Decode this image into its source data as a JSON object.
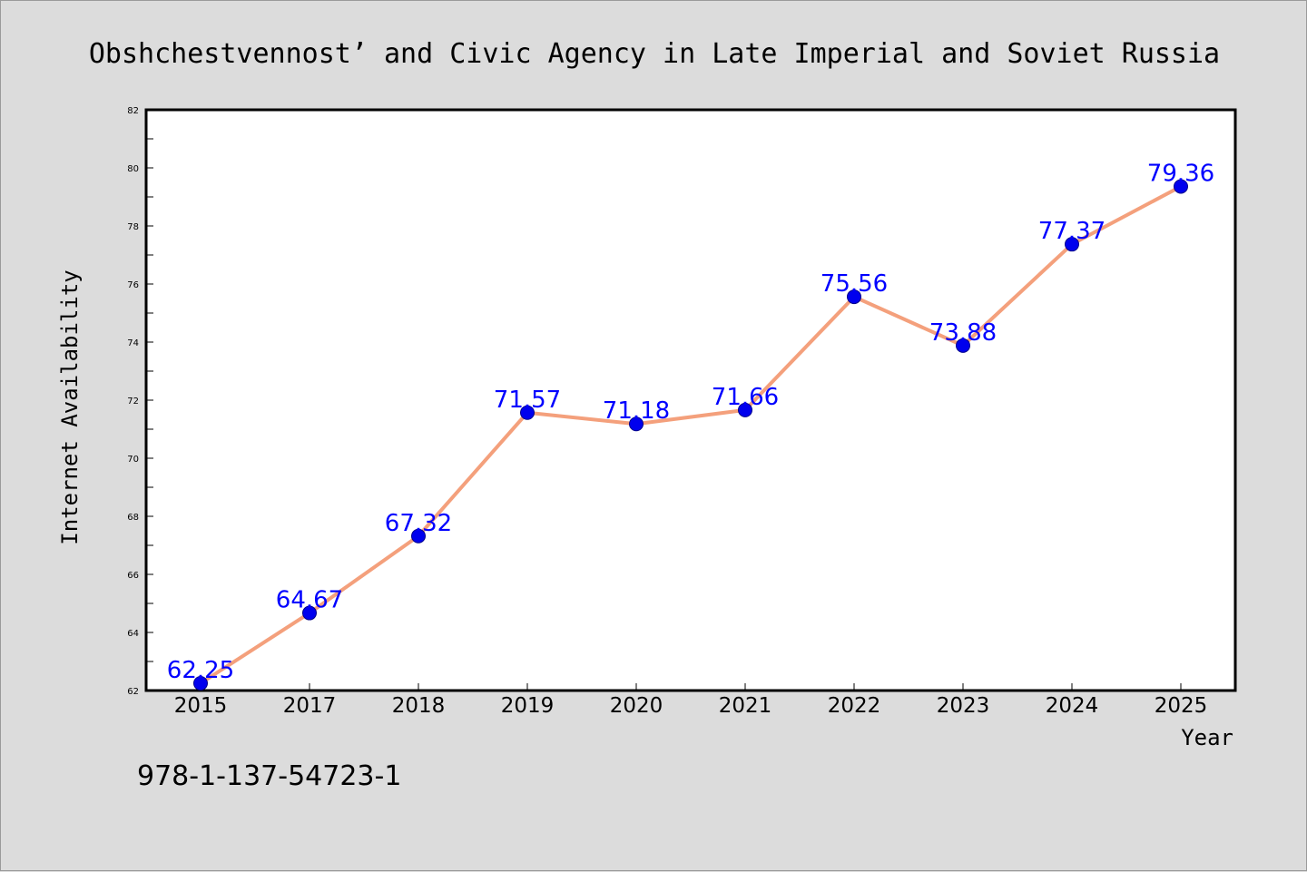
{
  "chart_data": {
    "type": "line",
    "title": "Obshchestvennost’  and Civic Agency in Late Imperial and Soviet Russia",
    "xlabel": "Year",
    "ylabel": "Internet Availability",
    "categories": [
      "2015",
      "2017",
      "2018",
      "2019",
      "2020",
      "2021",
      "2022",
      "2023",
      "2024",
      "2025"
    ],
    "series": [
      {
        "values": [
          62.25,
          64.67,
          67.32,
          71.57,
          71.18,
          71.66,
          75.56,
          73.88,
          77.37,
          79.36
        ],
        "labels": [
          "62.25",
          "64.67",
          "67.32",
          "71.57",
          "71.18",
          "71.66",
          "75.56",
          "73.88",
          "77.37",
          "79.36"
        ],
        "line_color": "#f4a07c",
        "marker_color": "#0000ee",
        "label_color": "#0000ff"
      }
    ],
    "ylim": [
      62,
      82
    ],
    "y_ticks": [
      "62",
      "64",
      "66",
      "68",
      "70",
      "72",
      "74",
      "76",
      "78",
      "80",
      "82"
    ],
    "grid": false,
    "legend": "none"
  },
  "footer": {
    "code": "978-1-137-54723-1"
  },
  "colors": {
    "background": "#dcdcdc",
    "plot_background": "#ffffff"
  }
}
